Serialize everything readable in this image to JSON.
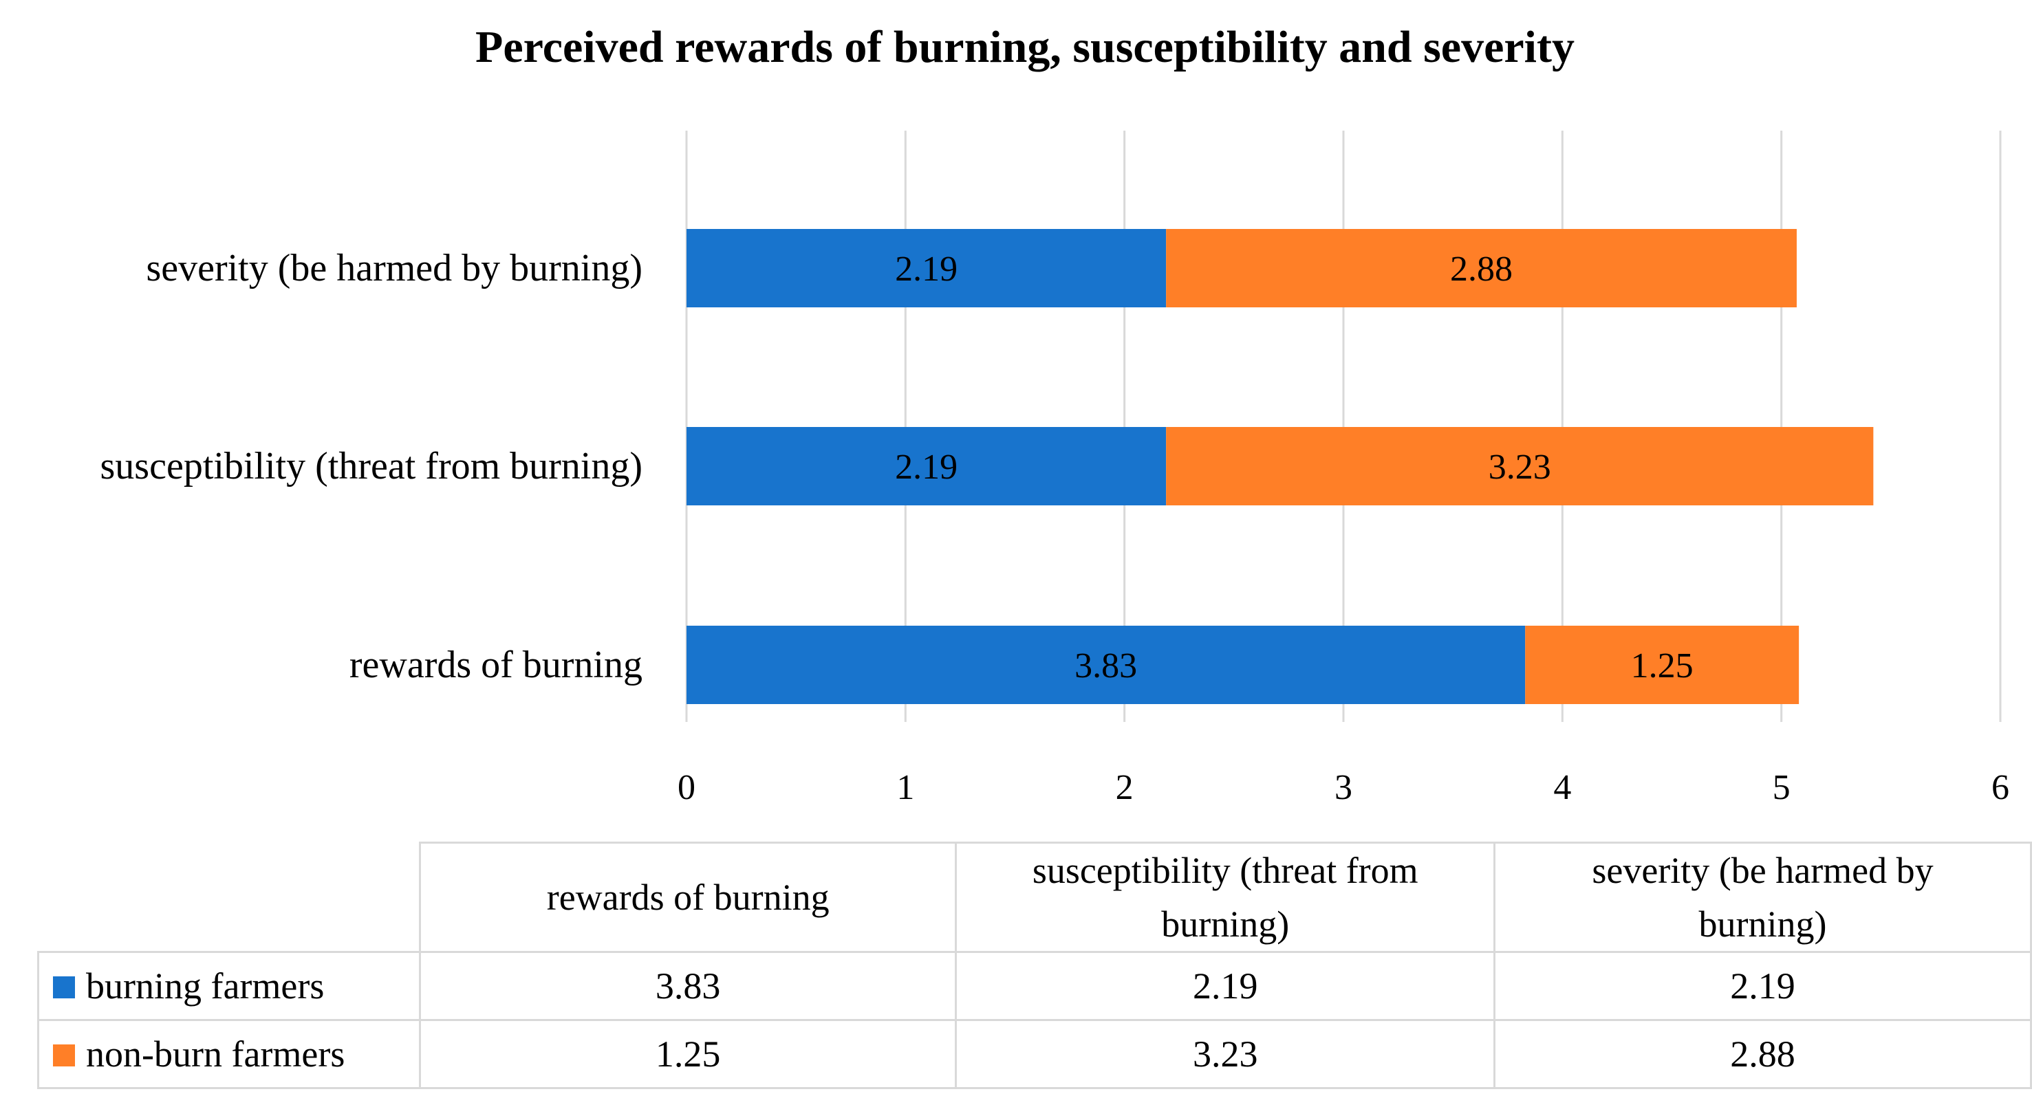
{
  "chart_data": {
    "type": "bar",
    "orientation": "horizontal",
    "stacked": true,
    "title": "Perceived rewards of burning, susceptibility and severity",
    "categories": [
      "rewards of burning",
      "susceptibility (threat from burning)",
      "severity (be harmed by burning)"
    ],
    "category_header_lines": [
      [
        "rewards of burning"
      ],
      [
        "susceptibility (threat from",
        "burning)"
      ],
      [
        "severity (be harmed by",
        "burning)"
      ]
    ],
    "series": [
      {
        "name": "burning farmers",
        "values": [
          3.83,
          2.19,
          2.19
        ],
        "labels": [
          "3.83",
          "2.19",
          "2.19"
        ],
        "color": "#1874cd"
      },
      {
        "name": "non-burn farmers",
        "values": [
          1.25,
          3.23,
          2.88
        ],
        "labels": [
          "1.25",
          "3.23",
          "2.88"
        ],
        "color": "#ff7f27"
      }
    ],
    "xlim": [
      0,
      6
    ],
    "xticks": [
      "0",
      "1",
      "2",
      "3",
      "4",
      "5",
      "6"
    ],
    "grid": true,
    "legend": "data-table"
  }
}
